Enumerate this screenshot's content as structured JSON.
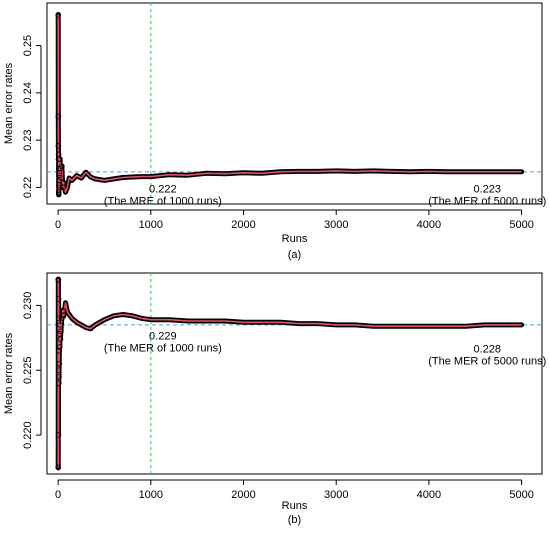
{
  "chart_data": [
    {
      "type": "line",
      "panel_label": "(a)",
      "xlabel": "Runs",
      "ylabel": "Mean error rates",
      "xlim": [
        -120,
        5220
      ],
      "ylim": [
        0.2165,
        0.259
      ],
      "xticks": [
        0,
        1000,
        2000,
        3000,
        4000,
        5000
      ],
      "xtick_labels": [
        "0",
        "1000",
        "2000",
        "3000",
        "4000",
        "5000"
      ],
      "yticks": [
        0.22,
        0.23,
        0.24,
        0.25
      ],
      "ytick_labels": [
        "0.22",
        "0.23",
        "0.24",
        "0.25"
      ],
      "colors": {
        "points": "#000000",
        "line": "#e0506a",
        "mean_line": "#4aa3df",
        "marker_line": "#2ecc40"
      },
      "reference_lines": {
        "horizontal": 0.2233,
        "vertical": 1000
      },
      "annotations": [
        {
          "x": 1000,
          "y": 0.2215,
          "value_text": "0.222",
          "note_text": "(The MRE of 1000 runs)"
        },
        {
          "x": 4500,
          "y": 0.2215,
          "value_text": "0.223",
          "note_text": "(The MER of 5000 runs)"
        }
      ],
      "series": [
        {
          "x": [
            1,
            2,
            3,
            4,
            5,
            6,
            7,
            8,
            9,
            10,
            12,
            15,
            18,
            20,
            25,
            30,
            40,
            50,
            60,
            80,
            100,
            120,
            150,
            200,
            250,
            300,
            350,
            400,
            500,
            600,
            700,
            800,
            900,
            1000,
            1200,
            1400,
            1600,
            1800,
            2000,
            2200,
            2400,
            2600,
            2800,
            3000,
            3200,
            3400,
            3600,
            3800,
            4000,
            4200,
            4400,
            4600,
            4800,
            5000
          ],
          "y": [
            0.2565,
            0.235,
            0.2288,
            0.226,
            0.227,
            0.219,
            0.2185,
            0.224,
            0.2205,
            0.2225,
            0.2215,
            0.223,
            0.22,
            0.226,
            0.224,
            0.222,
            0.2245,
            0.22,
            0.221,
            0.219,
            0.22,
            0.222,
            0.2215,
            0.2225,
            0.222,
            0.2232,
            0.2222,
            0.2218,
            0.2215,
            0.2218,
            0.2221,
            0.2222,
            0.2223,
            0.2223,
            0.2227,
            0.2226,
            0.223,
            0.2229,
            0.2231,
            0.223,
            0.2233,
            0.2234,
            0.2234,
            0.2235,
            0.2234,
            0.2235,
            0.2234,
            0.2233,
            0.2234,
            0.2233,
            0.2233,
            0.2233,
            0.2233,
            0.2233
          ]
        }
      ]
    },
    {
      "type": "line",
      "panel_label": "(b)",
      "xlabel": "Runs",
      "ylabel": "Mean error rates",
      "xlim": [
        -120,
        5220
      ],
      "ylim": [
        0.217,
        0.2325
      ],
      "xticks": [
        0,
        1000,
        2000,
        3000,
        4000,
        5000
      ],
      "xtick_labels": [
        "0",
        "1000",
        "2000",
        "3000",
        "4000",
        "5000"
      ],
      "yticks": [
        0.22,
        0.225,
        0.23
      ],
      "ytick_labels": [
        "0.220",
        "0.225",
        "0.230"
      ],
      "colors": {
        "points": "#000000",
        "line": "#e0506a",
        "mean_line": "#4aa3df",
        "marker_line": "#2ecc40"
      },
      "reference_lines": {
        "horizontal": 0.2285,
        "vertical": 1000
      },
      "annotations": [
        {
          "x": 1000,
          "y": 0.2283,
          "value_text": "0.229",
          "note_text": "(The MER of 1000 runs)"
        },
        {
          "x": 4500,
          "y": 0.2273,
          "value_text": "0.228",
          "note_text": "(The MER of 5000 runs)"
        }
      ],
      "series": [
        {
          "x": [
            1,
            2,
            3,
            4,
            5,
            6,
            7,
            8,
            9,
            10,
            12,
            15,
            18,
            20,
            25,
            30,
            40,
            50,
            60,
            80,
            100,
            150,
            200,
            250,
            300,
            350,
            400,
            500,
            600,
            700,
            800,
            900,
            1000,
            1200,
            1400,
            1600,
            1800,
            2000,
            2200,
            2400,
            2600,
            2800,
            3000,
            3200,
            3400,
            3600,
            3800,
            4000,
            4200,
            4400,
            4600,
            4800,
            5000
          ],
          "y": [
            0.2175,
            0.232,
            0.232,
            0.22,
            0.2305,
            0.225,
            0.224,
            0.229,
            0.2245,
            0.2265,
            0.2255,
            0.2278,
            0.2268,
            0.2285,
            0.2274,
            0.228,
            0.229,
            0.2296,
            0.2292,
            0.2302,
            0.2295,
            0.229,
            0.2287,
            0.2285,
            0.2283,
            0.2282,
            0.2285,
            0.2289,
            0.2292,
            0.2293,
            0.2292,
            0.229,
            0.2289,
            0.2289,
            0.2288,
            0.2288,
            0.2288,
            0.2287,
            0.2287,
            0.2287,
            0.2286,
            0.2286,
            0.2285,
            0.2285,
            0.2284,
            0.2284,
            0.2284,
            0.2284,
            0.2284,
            0.2284,
            0.2285,
            0.2285,
            0.2285
          ]
        }
      ]
    }
  ]
}
